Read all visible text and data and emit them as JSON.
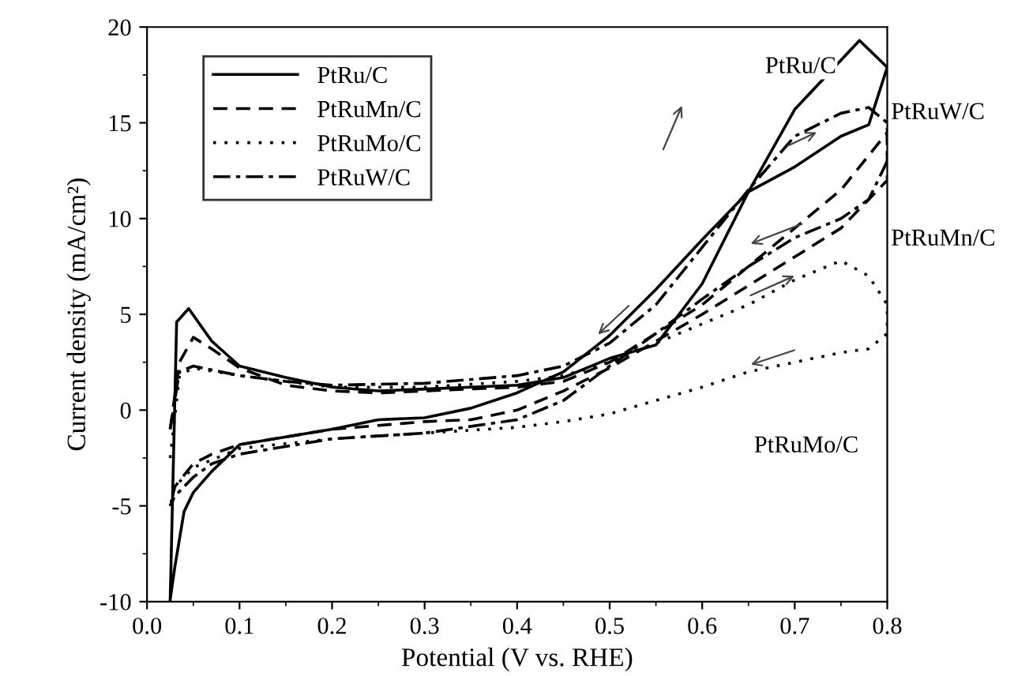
{
  "chart_data": {
    "type": "line",
    "xlabel": "Potential (V vs. RHE)",
    "ylabel": "Current density (mA/cm²)",
    "xlim": [
      0.0,
      0.8
    ],
    "xticks": [
      {
        "value": 0.0,
        "label": "0.0"
      },
      0.1,
      0.2,
      0.3,
      0.4,
      0.5,
      0.6,
      0.7,
      0.8
    ],
    "ylim": [
      -10,
      20
    ],
    "yticks": [
      -10,
      -5,
      0,
      5,
      10,
      15,
      20
    ],
    "grid": false,
    "legend": "top left",
    "marker": "none",
    "series": [
      {
        "name": "PtRu/C",
        "color": "#000000",
        "line_style": "solid",
        "x": [
          0.025,
          0.032,
          0.045,
          0.07,
          0.1,
          0.15,
          0.2,
          0.25,
          0.3,
          0.35,
          0.4,
          0.45,
          0.5,
          0.55,
          0.6,
          0.65,
          0.7,
          0.77,
          0.8,
          0.78,
          0.75,
          0.7,
          0.65,
          0.6,
          0.55,
          0.5,
          0.45,
          0.4,
          0.35,
          0.3,
          0.25,
          0.2,
          0.15,
          0.1,
          0.07,
          0.05,
          0.04,
          0.03,
          0.025
        ],
        "values": [
          -10,
          4.6,
          5.3,
          3.6,
          2.3,
          1.7,
          1.2,
          1.0,
          1.1,
          1.2,
          1.3,
          1.7,
          2.7,
          3.4,
          6.6,
          11.4,
          15.7,
          19.3,
          17.9,
          14.9,
          14.3,
          12.7,
          11.4,
          8.9,
          6.3,
          3.9,
          2.0,
          0.9,
          0.1,
          -0.4,
          -0.5,
          -1.0,
          -1.4,
          -1.8,
          -3.2,
          -4.3,
          -5.3,
          -8.2,
          -9.9
        ]
      },
      {
        "name": "PtRuMn/C",
        "color": "#000000",
        "line_style": "dashed",
        "x": [
          0.025,
          0.035,
          0.05,
          0.07,
          0.1,
          0.15,
          0.2,
          0.25,
          0.3,
          0.4,
          0.45,
          0.5,
          0.55,
          0.6,
          0.65,
          0.7,
          0.75,
          0.8,
          0.8,
          0.75,
          0.7,
          0.65,
          0.6,
          0.55,
          0.5,
          0.45,
          0.4,
          0.35,
          0.3,
          0.25,
          0.2,
          0.15,
          0.1,
          0.07,
          0.05,
          0.03,
          0.025
        ],
        "values": [
          -1,
          2.5,
          3.8,
          3.2,
          2.2,
          1.3,
          1.0,
          0.9,
          1.0,
          1.2,
          1.5,
          2.5,
          4.0,
          5.5,
          7.5,
          9.5,
          11.5,
          14.5,
          12,
          9.5,
          8.0,
          6.5,
          5.0,
          3.6,
          2.2,
          1.0,
          0.0,
          -0.5,
          -0.6,
          -0.8,
          -1.0,
          -1.4,
          -1.8,
          -2.3,
          -2.8,
          -4,
          -5
        ]
      },
      {
        "name": "PtRuMo/C",
        "color": "#000000",
        "line_style": "dotted",
        "x": [
          0.025,
          0.035,
          0.05,
          0.1,
          0.15,
          0.2,
          0.3,
          0.4,
          0.45,
          0.5,
          0.55,
          0.6,
          0.65,
          0.7,
          0.75,
          0.78,
          0.8,
          0.8,
          0.78,
          0.75,
          0.7,
          0.65,
          0.6,
          0.55,
          0.5,
          0.45,
          0.4,
          0.3,
          0.2,
          0.1,
          0.05,
          0.03,
          0.025
        ],
        "values": [
          -2.5,
          1.8,
          2.2,
          1.8,
          1.5,
          1.2,
          1.2,
          1.5,
          1.8,
          2.5,
          3.5,
          4.5,
          5.5,
          6.8,
          7.8,
          7.0,
          5.5,
          4.0,
          3.2,
          3.0,
          2.5,
          2.0,
          1.2,
          0.5,
          -0.2,
          -0.6,
          -0.9,
          -1.2,
          -1.5,
          -2.0,
          -3.0,
          -4.0,
          -5
        ]
      },
      {
        "name": "PtRuW/C",
        "color": "#000000",
        "line_style": "dashdot",
        "x": [
          0.025,
          0.035,
          0.05,
          0.1,
          0.15,
          0.2,
          0.3,
          0.4,
          0.45,
          0.5,
          0.55,
          0.6,
          0.65,
          0.7,
          0.75,
          0.78,
          0.8,
          0.8,
          0.78,
          0.75,
          0.7,
          0.65,
          0.6,
          0.55,
          0.5,
          0.45,
          0.4,
          0.3,
          0.2,
          0.1,
          0.07,
          0.05,
          0.03,
          0.025
        ],
        "values": [
          -1,
          2.0,
          2.3,
          1.8,
          1.5,
          1.3,
          1.4,
          1.8,
          2.3,
          3.5,
          5.5,
          8.5,
          11.5,
          14.3,
          15.5,
          15.8,
          15,
          13,
          11,
          10,
          9,
          7.5,
          5.8,
          4.0,
          2.3,
          0.5,
          -0.5,
          -1.2,
          -1.5,
          -2.3,
          -2.8,
          -3.5,
          -4.5,
          -5
        ]
      }
    ],
    "annotations": [
      "PtRu/C",
      "PtRuW/C",
      "PtRuMn/C",
      "PtRuMo/C"
    ]
  }
}
